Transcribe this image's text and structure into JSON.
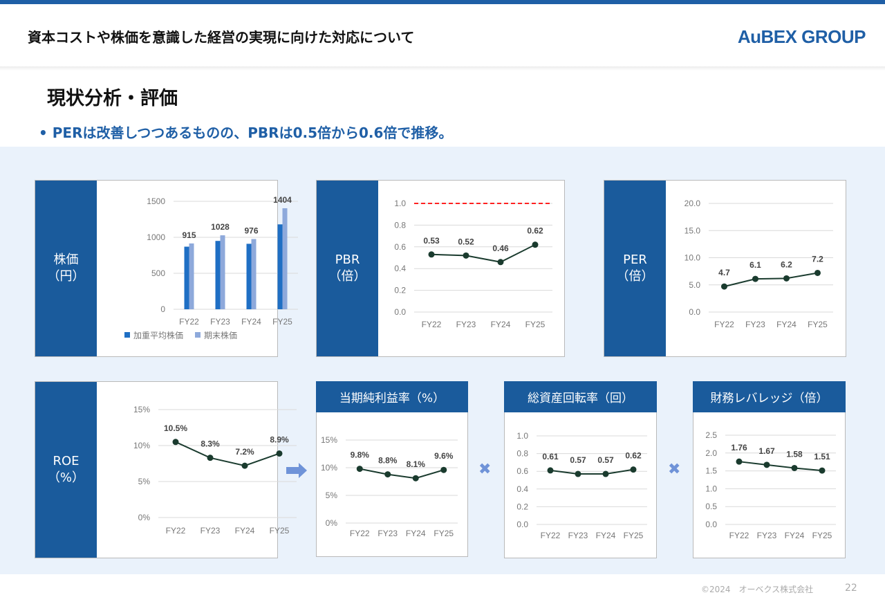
{
  "header": {
    "title": "資本コストや株価を意識した経営の実現に向けた対応について",
    "logo": "AuBEX GROUP"
  },
  "section_title": "現状分析・評価",
  "bullet": "• PERは改善しつつあるものの、PBRは0.5倍から0.6倍で推移。",
  "footer": {
    "copyright": "©2024　オーベクス株式会社",
    "page": "22"
  },
  "colors": {
    "brand": "#1a5b9c",
    "bar1": "#1f6fc4",
    "bar2": "#8ea9db",
    "line": "#1a3b2e",
    "ref": "#ff0000",
    "op": "#6f93d8"
  },
  "operators": {
    "arrow": "arrow-right",
    "times1": "✖",
    "times2": "✖"
  },
  "chart_data": [
    {
      "id": "stock",
      "type": "bar",
      "side_label": [
        "株価",
        "（円）"
      ],
      "categories": [
        "FY22",
        "FY23",
        "FY24",
        "FY25"
      ],
      "series": [
        {
          "name": "加重平均株価",
          "values": [
            870,
            950,
            910,
            1180
          ]
        },
        {
          "name": "期末株価",
          "values": [
            915,
            1028,
            976,
            1404
          ]
        }
      ],
      "data_labels": [
        "915",
        "1028",
        "976",
        "1404"
      ],
      "yticks": [
        "0",
        "500",
        "1000",
        "1500"
      ],
      "ylim": [
        0,
        1500
      ],
      "legend": "bottom"
    },
    {
      "id": "pbr",
      "type": "line",
      "side_label": [
        "PBR",
        "（倍）"
      ],
      "categories": [
        "FY22",
        "FY23",
        "FY24",
        "FY25"
      ],
      "values": [
        0.53,
        0.52,
        0.46,
        0.62
      ],
      "data_labels": [
        "0.53",
        "0.52",
        "0.46",
        "0.62"
      ],
      "yticks": [
        "0.0",
        "0.2",
        "0.4",
        "0.6",
        "0.8",
        "1.0"
      ],
      "ylim": [
        0,
        1.0
      ],
      "reference_line": 1.0
    },
    {
      "id": "per",
      "type": "line",
      "side_label": [
        "PER",
        "（倍）"
      ],
      "categories": [
        "FY22",
        "FY23",
        "FY24",
        "FY25"
      ],
      "values": [
        4.7,
        6.1,
        6.2,
        7.2
      ],
      "data_labels": [
        "4.7",
        "6.1",
        "6.2",
        "7.2"
      ],
      "yticks": [
        "0.0",
        "5.0",
        "10.0",
        "15.0",
        "20.0"
      ],
      "ylim": [
        0,
        20
      ]
    },
    {
      "id": "roe",
      "type": "line",
      "side_label": [
        "ROE",
        "（%）"
      ],
      "categories": [
        "FY22",
        "FY23",
        "FY24",
        "FY25"
      ],
      "values": [
        10.5,
        8.3,
        7.2,
        8.9
      ],
      "data_labels": [
        "10.5%",
        "8.3%",
        "7.2%",
        "8.9%"
      ],
      "yticks": [
        "0%",
        "5%",
        "10%",
        "15%"
      ],
      "ylim": [
        0,
        15
      ]
    },
    {
      "id": "npm",
      "type": "line",
      "title": "当期純利益率（%）",
      "categories": [
        "FY22",
        "FY23",
        "FY24",
        "FY25"
      ],
      "values": [
        9.8,
        8.8,
        8.1,
        9.6
      ],
      "data_labels": [
        "9.8%",
        "8.8%",
        "8.1%",
        "9.6%"
      ],
      "yticks": [
        "0%",
        "5%",
        "10%",
        "15%"
      ],
      "ylim": [
        0,
        15
      ]
    },
    {
      "id": "turnover",
      "type": "line",
      "title": "総資産回転率（回）",
      "categories": [
        "FY22",
        "FY23",
        "FY24",
        "FY25"
      ],
      "values": [
        0.61,
        0.57,
        0.57,
        0.62
      ],
      "data_labels": [
        "0.61",
        "0.57",
        "0.57",
        "0.62"
      ],
      "yticks": [
        "0.0",
        "0.2",
        "0.4",
        "0.6",
        "0.8",
        "1.0"
      ],
      "ylim": [
        0,
        1.0
      ]
    },
    {
      "id": "leverage",
      "type": "line",
      "title": "財務レバレッジ（倍）",
      "categories": [
        "FY22",
        "FY23",
        "FY24",
        "FY25"
      ],
      "values": [
        1.76,
        1.67,
        1.58,
        1.51
      ],
      "data_labels": [
        "1.76",
        "1.67",
        "1.58",
        "1.51"
      ],
      "yticks": [
        "0.0",
        "0.5",
        "1.0",
        "1.5",
        "2.0",
        "2.5"
      ],
      "ylim": [
        0,
        2.5
      ]
    }
  ]
}
